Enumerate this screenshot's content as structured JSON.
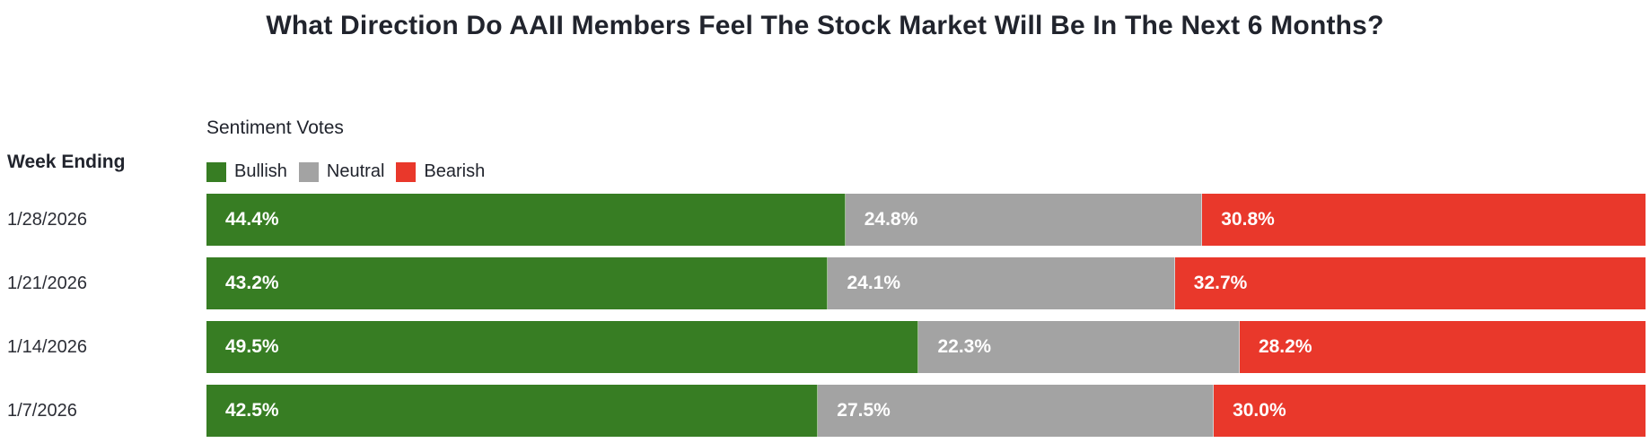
{
  "title": "What Direction Do AAII Members Feel The Stock Market Will Be In The Next 6 Months?",
  "columns": {
    "week_ending_label": "Week Ending"
  },
  "legend": {
    "title": "Sentiment Votes",
    "items": [
      {
        "label": "Bullish",
        "color": "#377D23"
      },
      {
        "label": "Neutral",
        "color": "#A3A3A3"
      },
      {
        "label": "Bearish",
        "color": "#E9382B"
      }
    ]
  },
  "chart_data": {
    "type": "bar",
    "orientation": "horizontal",
    "stacked": true,
    "unit": "%",
    "xlim": [
      0,
      100
    ],
    "legend_position": "top",
    "categories": [
      "1/28/2026",
      "1/21/2026",
      "1/14/2026",
      "1/7/2026"
    ],
    "series": [
      {
        "name": "Bullish",
        "color": "#377D23",
        "values": [
          44.4,
          43.2,
          49.5,
          42.5
        ]
      },
      {
        "name": "Neutral",
        "color": "#A3A3A3",
        "values": [
          24.8,
          24.1,
          22.3,
          27.5
        ]
      },
      {
        "name": "Bearish",
        "color": "#E9382B",
        "values": [
          30.8,
          32.7,
          28.2,
          30.0
        ]
      }
    ],
    "bar_labels": [
      [
        "44.4%",
        "24.8%",
        "30.8%"
      ],
      [
        "43.2%",
        "24.1%",
        "32.7%"
      ],
      [
        "49.5%",
        "22.3%",
        "28.2%"
      ],
      [
        "42.5%",
        "27.5%",
        "30.0%"
      ]
    ]
  },
  "colors": {
    "background": "#FFFFFF",
    "title_text": "#21242D",
    "label_text": "#2B2D35",
    "bar_value_text": "#FFFFFF"
  }
}
